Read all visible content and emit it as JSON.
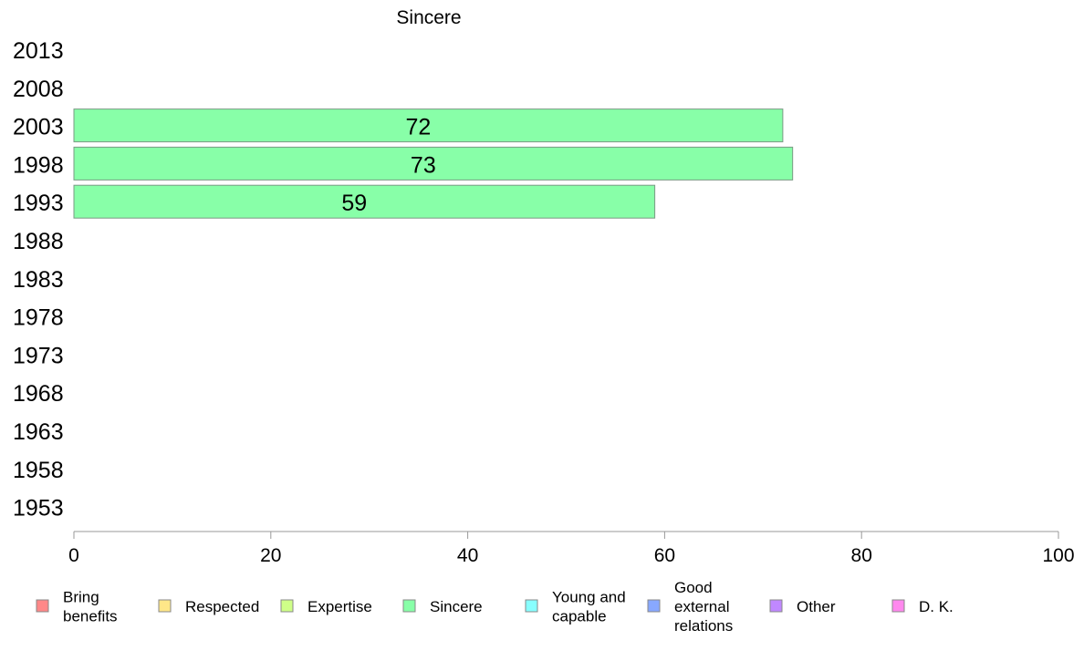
{
  "chart_data": {
    "type": "bar",
    "orientation": "horizontal",
    "title": "Sincere",
    "xlabel": "",
    "ylabel": "",
    "xlim": [
      0,
      100
    ],
    "x_ticks": [
      0,
      20,
      40,
      60,
      80,
      100
    ],
    "categories": [
      "2013",
      "2008",
      "2003",
      "1998",
      "1993",
      "1988",
      "1983",
      "1978",
      "1973",
      "1968",
      "1963",
      "1958",
      "1953"
    ],
    "series": [
      {
        "name": "Sincere",
        "color": "#88ffa8",
        "values": [
          null,
          null,
          72,
          73,
          59,
          null,
          null,
          null,
          null,
          null,
          null,
          null,
          null
        ],
        "labels": [
          "",
          "",
          "72",
          "73",
          "59",
          "",
          "",
          "",
          "",
          "",
          "",
          "",
          ""
        ]
      }
    ],
    "grid": false,
    "legend_position": "bottom",
    "legend": [
      {
        "label": "Bring\nbenefits",
        "color": "#ff8888"
      },
      {
        "label": "Respected",
        "color": "#ffe788"
      },
      {
        "label": "Expertise",
        "color": "#cfff88"
      },
      {
        "label": "Sincere",
        "color": "#88ffa8"
      },
      {
        "label": "Young and\ncapable",
        "color": "#88ffff"
      },
      {
        "label": "Good\nexternal\nrelations",
        "color": "#88a8ff"
      },
      {
        "label": "Other",
        "color": "#c088ff"
      },
      {
        "label": "D. K.",
        "color": "#ff88ee"
      }
    ]
  }
}
